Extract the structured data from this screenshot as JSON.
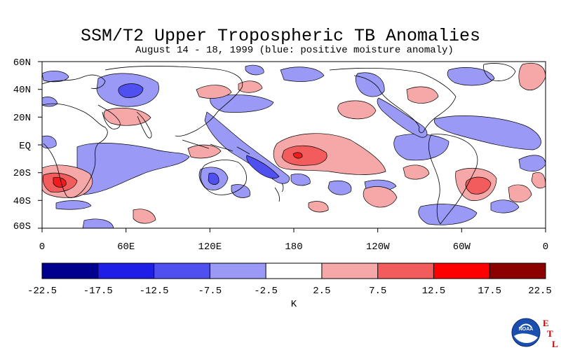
{
  "header": {
    "title": "SSM/T2 Upper Tropospheric TB Anomalies",
    "subtitle": "August 14 - 18, 1999 (blue: positive moisture anomaly)"
  },
  "map": {
    "lat_labels": [
      "60N",
      "40N",
      "20N",
      "EQ",
      "20S",
      "40S",
      "60S"
    ],
    "lon_labels": [
      "0",
      "60E",
      "120E",
      "180",
      "120W",
      "60W",
      "0"
    ]
  },
  "colorbar": {
    "unit": "K",
    "tick_labels": [
      "-22.5",
      "-17.5",
      "-12.5",
      "-7.5",
      "-2.5",
      "2.5",
      "7.5",
      "12.5",
      "17.5",
      "22.5"
    ],
    "colors": [
      "#00008f",
      "#1e1ee6",
      "#5050f0",
      "#9a9af6",
      "#ffffff",
      "#f6a8a8",
      "#f25c5c",
      "#f21c1c",
      "#ff0000",
      "#8c0000"
    ]
  },
  "logo": {
    "text": "NOAA",
    "letters": [
      "E",
      "T",
      "L"
    ],
    "brand_color": "#cc0000"
  }
}
